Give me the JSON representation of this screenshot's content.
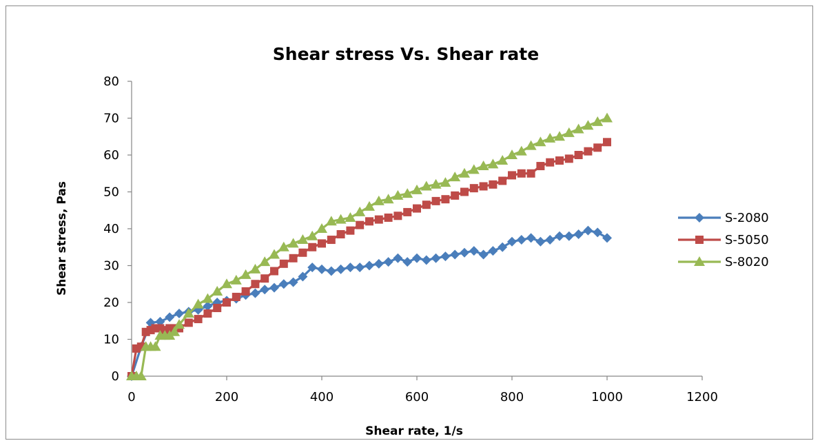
{
  "chart_data": {
    "type": "line",
    "title": "Shear stress Vs. Shear rate",
    "xlabel": "Shear rate, 1/s",
    "ylabel": "Shear stress, Pas",
    "xlim": [
      0,
      1200
    ],
    "ylim": [
      0,
      80
    ],
    "xticks": [
      0,
      200,
      400,
      600,
      800,
      1000,
      1200
    ],
    "yticks": [
      0,
      10,
      20,
      30,
      40,
      50,
      60,
      70,
      80
    ],
    "grid": false,
    "legend_position": "right",
    "series": [
      {
        "name": "S-2080",
        "color": "#4a7ebb",
        "marker": "diamond",
        "x": [
          0,
          20,
          40,
          60,
          80,
          100,
          120,
          140,
          160,
          180,
          200,
          220,
          240,
          260,
          280,
          300,
          320,
          340,
          360,
          380,
          400,
          420,
          440,
          460,
          480,
          500,
          520,
          540,
          560,
          580,
          600,
          620,
          640,
          660,
          680,
          700,
          720,
          740,
          760,
          780,
          800,
          820,
          840,
          860,
          880,
          900,
          920,
          940,
          960,
          980,
          1000
        ],
        "y": [
          0,
          8,
          14.5,
          14.8,
          16,
          17,
          17.5,
          18,
          19,
          20,
          20.5,
          21,
          22,
          22.5,
          23.5,
          24,
          25,
          25.5,
          27,
          29.5,
          29,
          28.5,
          29,
          29.5,
          29.5,
          30,
          30.5,
          31,
          32,
          31,
          32,
          31.5,
          32,
          32.5,
          33,
          33.5,
          34,
          33,
          34,
          35,
          36.5,
          37,
          37.5,
          36.5,
          37,
          38,
          38,
          38.5,
          39.5,
          39,
          37.5
        ]
      },
      {
        "name": "S-5050",
        "color": "#be4b48",
        "marker": "square",
        "x": [
          0,
          10,
          20,
          30,
          40,
          50,
          60,
          70,
          80,
          90,
          100,
          120,
          140,
          160,
          180,
          200,
          220,
          240,
          260,
          280,
          300,
          320,
          340,
          360,
          380,
          400,
          420,
          440,
          460,
          480,
          500,
          520,
          540,
          560,
          580,
          600,
          620,
          640,
          660,
          680,
          700,
          720,
          740,
          760,
          780,
          800,
          820,
          840,
          860,
          880,
          900,
          920,
          940,
          960,
          980,
          1000
        ],
        "y": [
          0,
          7.5,
          8,
          12,
          12.5,
          13,
          13,
          12.5,
          13,
          13,
          13,
          14.5,
          15.5,
          17,
          18.5,
          20,
          21.5,
          23,
          25,
          26.5,
          28.5,
          30.5,
          32,
          33.5,
          35,
          36,
          37,
          38.5,
          39.5,
          41,
          42,
          42.5,
          43,
          43.5,
          44.5,
          45.5,
          46.5,
          47.5,
          48,
          49,
          50,
          51,
          51.5,
          52,
          53,
          54.5,
          55,
          55,
          57,
          58,
          58.5,
          59,
          60,
          61,
          62,
          63.5
        ]
      },
      {
        "name": "S-8020",
        "color": "#98b954",
        "marker": "triangle",
        "x": [
          0,
          10,
          20,
          30,
          40,
          50,
          60,
          70,
          80,
          90,
          100,
          120,
          140,
          160,
          180,
          200,
          220,
          240,
          260,
          280,
          300,
          320,
          340,
          360,
          380,
          400,
          420,
          440,
          460,
          480,
          500,
          520,
          540,
          560,
          580,
          600,
          620,
          640,
          660,
          680,
          700,
          720,
          740,
          760,
          780,
          800,
          820,
          840,
          860,
          880,
          900,
          920,
          940,
          960,
          980,
          1000
        ],
        "y": [
          0,
          0,
          0,
          8,
          8,
          8,
          11,
          11,
          11,
          12,
          14,
          17,
          19.5,
          21,
          23,
          25,
          26,
          27.5,
          29,
          31,
          33,
          35,
          36,
          37,
          38,
          40,
          42,
          42.5,
          43,
          44.5,
          46,
          47.5,
          48,
          49,
          49.5,
          50.5,
          51.5,
          52,
          52.5,
          54,
          55,
          56,
          57,
          57.5,
          58.5,
          60,
          61,
          62.5,
          63.5,
          64.5,
          65,
          66,
          67,
          68,
          69,
          70
        ]
      }
    ]
  }
}
